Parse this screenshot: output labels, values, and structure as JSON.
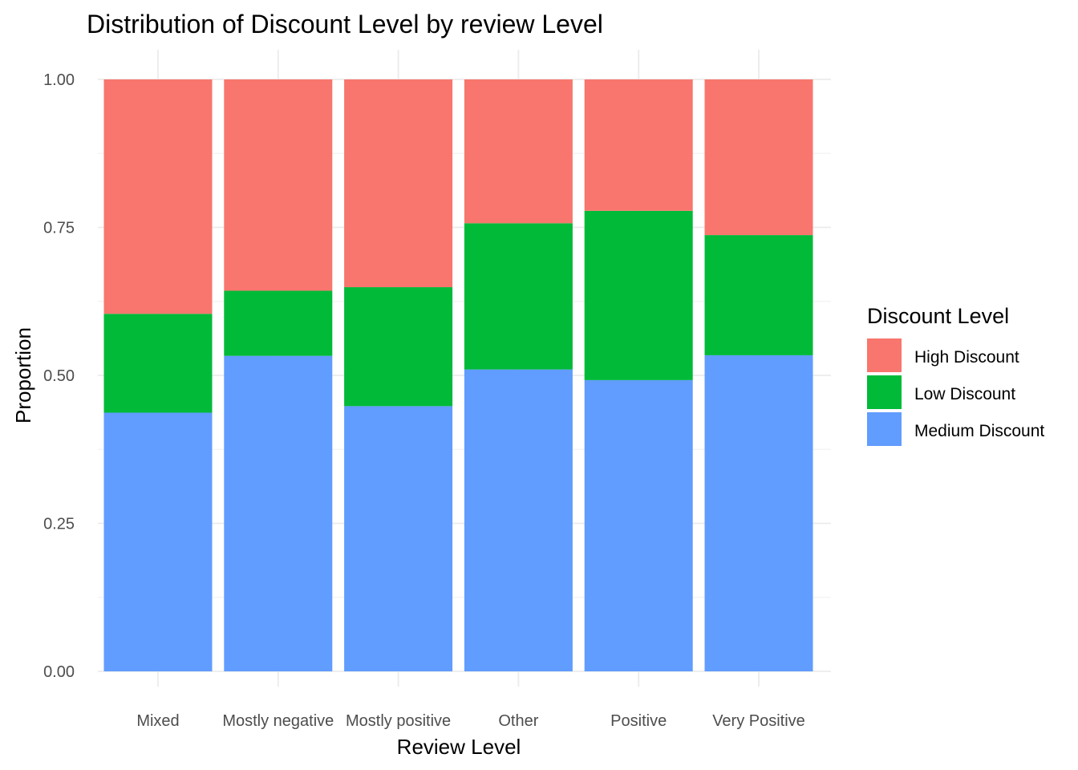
{
  "chart_data": {
    "type": "bar",
    "stacked": true,
    "title": "Distribution of Discount Level by review Level",
    "xlabel": "Review Level",
    "ylabel": "Proportion",
    "categories": [
      "Mixed",
      "Mostly negative",
      "Mostly positive",
      "Other",
      "Positive",
      "Very Positive"
    ],
    "series": [
      {
        "name": "Medium Discount",
        "color": "#619CFF",
        "values": [
          0.437,
          0.533,
          0.448,
          0.51,
          0.492,
          0.534
        ]
      },
      {
        "name": "Low Discount",
        "color": "#00BA38",
        "values": [
          0.167,
          0.11,
          0.201,
          0.247,
          0.286,
          0.203
        ]
      },
      {
        "name": "High Discount",
        "color": "#F8766D",
        "values": [
          0.396,
          0.357,
          0.351,
          0.243,
          0.222,
          0.263
        ]
      }
    ],
    "legend": {
      "title": "Discount Level",
      "position": "right",
      "order": [
        "High Discount",
        "Low Discount",
        "Medium Discount"
      ]
    },
    "ylim": [
      0,
      1
    ],
    "yticks": [
      0,
      0.25,
      0.5,
      0.75,
      1.0
    ],
    "ytick_labels": [
      "0.00",
      "0.25",
      "0.50",
      "0.75",
      "1.00"
    ],
    "grid": true
  }
}
